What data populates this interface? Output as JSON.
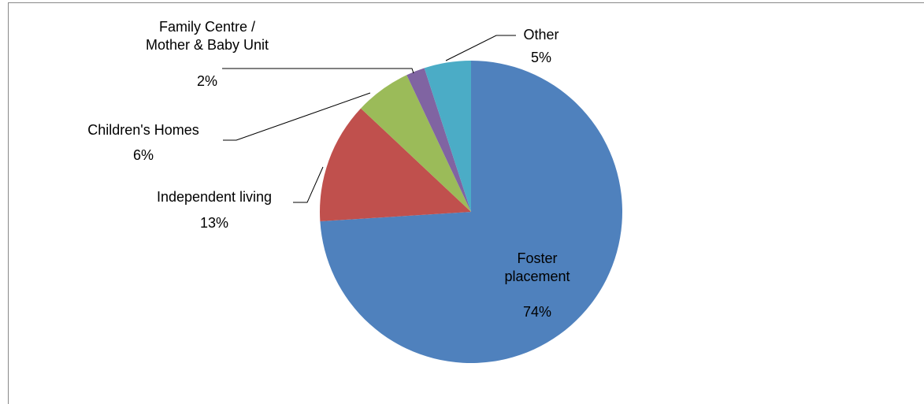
{
  "chart_data": {
    "type": "pie",
    "categories": [
      "Foster\nplacement",
      "Independent living",
      "Children's Homes",
      "Family Centre /\nMother & Baby Unit",
      "Other"
    ],
    "values": [
      74,
      13,
      6,
      2,
      5
    ],
    "value_labels": [
      "74%",
      "13%",
      "6%",
      "2%",
      "5%"
    ],
    "colors": [
      "#4f81bd",
      "#c0504d",
      "#9bbb59",
      "#8064a2",
      "#4bacc6"
    ]
  }
}
